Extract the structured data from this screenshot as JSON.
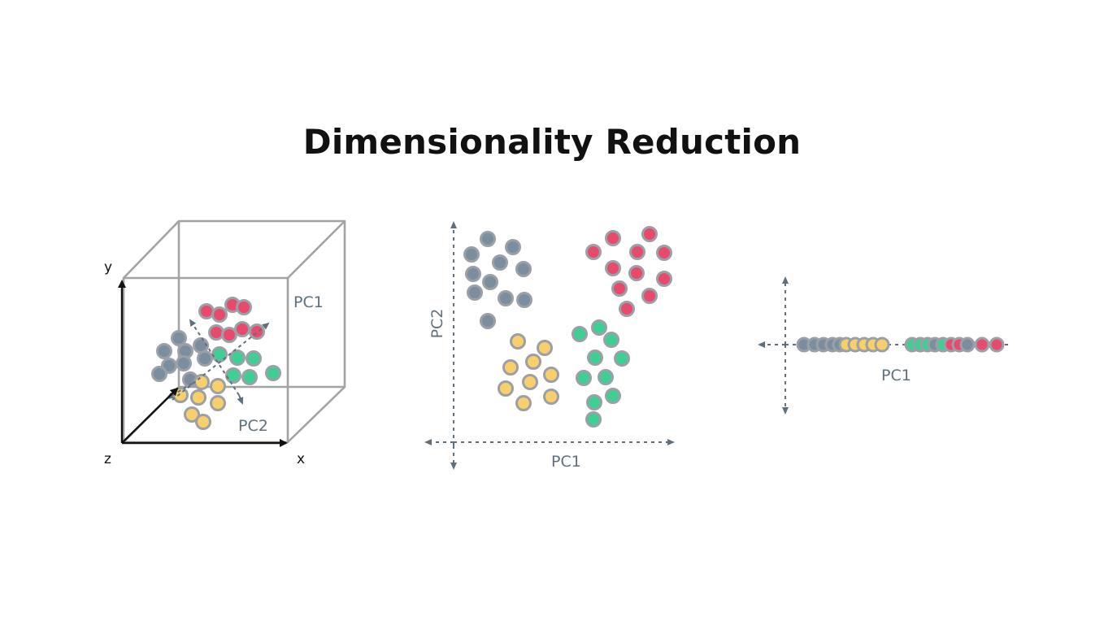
{
  "title": "Dimensionality Reduction",
  "colors": {
    "blue": "#7a8ea0",
    "red": "#e84a6c",
    "green": "#3ecf95",
    "yellow": "#f8cf6a",
    "outline": "#9aa0a6",
    "cube": "#a3a3a3",
    "axis": "#111111",
    "dashed": "#5f707c"
  },
  "panels": {
    "cube": {
      "x_label": "x",
      "y_label": "y",
      "z_label": "z",
      "pc1_label": "PC1",
      "pc2_label": "PC2"
    },
    "scatter2d": {
      "x_label": "PC1",
      "y_label": "PC2"
    },
    "line1d": {
      "x_label": "PC1"
    }
  }
}
